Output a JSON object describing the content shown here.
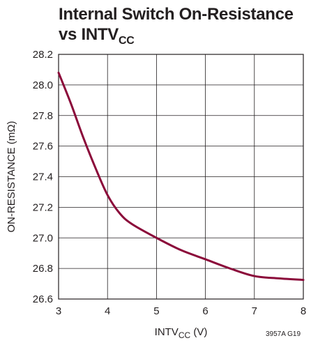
{
  "chart_data": {
    "type": "line",
    "title": {
      "line1": "Internal Switch On-Resistance",
      "line2_main": "vs INTV",
      "line2_sub": "CC"
    },
    "xlabel": {
      "main": "INTV",
      "sub": "CC",
      "suffix": " (V)"
    },
    "ylabel": "ON-RESISTANCE (mΩ)",
    "xlim": [
      3,
      8
    ],
    "ylim": [
      26.6,
      28.2
    ],
    "xticks": [
      "3",
      "4",
      "5",
      "6",
      "7",
      "8"
    ],
    "yticks": [
      "26.6",
      "26.8",
      "27.0",
      "27.2",
      "27.4",
      "27.6",
      "27.8",
      "28.0",
      "28.2"
    ],
    "grid": true,
    "line_color": "#8b0a3a",
    "series": [
      {
        "x": [
          3.0,
          3.25,
          3.5,
          3.75,
          4.0,
          4.25,
          4.5,
          5.0,
          5.5,
          6.0,
          6.5,
          7.0,
          7.5,
          8.0
        ],
        "y": [
          28.08,
          27.88,
          27.66,
          27.46,
          27.28,
          27.16,
          27.09,
          27.0,
          26.92,
          26.86,
          26.8,
          26.75,
          26.735,
          26.725
        ]
      }
    ]
  },
  "figure_id": "3957A G19"
}
